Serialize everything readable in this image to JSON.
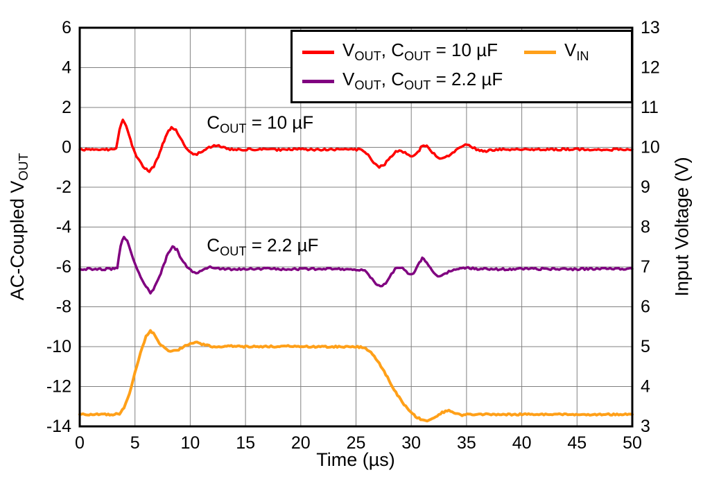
{
  "figure": {
    "background": "#ffffff",
    "frame_color": "#000000",
    "grid_color": "#808080"
  },
  "chart_data": {
    "type": "line",
    "title": "",
    "grid": true,
    "x_axis": {
      "label": "Time (µs)",
      "min": 0,
      "max": 50,
      "tick_step": 5
    },
    "y_left": {
      "label_segments": [
        {
          "t": "AC-Coupled V"
        },
        {
          "s": "OUT"
        }
      ],
      "min": -14,
      "max": 6,
      "tick_step": 2
    },
    "y_right": {
      "label": "Input Voltage (V)",
      "min": 3,
      "max": 13,
      "tick_step": 1
    },
    "legend": {
      "position": "top",
      "items": [
        {
          "id": "vout-10uf",
          "color": "#FF0000",
          "row": 0,
          "col": 0,
          "segments": [
            {
              "t": "V"
            },
            {
              "s": "OUT"
            },
            {
              "t": ", C"
            },
            {
              "s": "OUT"
            },
            {
              "t": " = 10 µF"
            }
          ]
        },
        {
          "id": "vin",
          "color": "#FFA019",
          "row": 0,
          "col": 1,
          "segments": [
            {
              "t": "V"
            },
            {
              "s": "IN"
            }
          ]
        },
        {
          "id": "vout-2p2uf",
          "color": "#800080",
          "row": 1,
          "col": 0,
          "segments": [
            {
              "t": "V"
            },
            {
              "s": "OUT"
            },
            {
              "t": ", C"
            },
            {
              "s": "OUT"
            },
            {
              "t": " = 2.2 µF"
            }
          ]
        }
      ]
    },
    "annotations": [
      {
        "id": "label-cout-10uf",
        "x": 11.5,
        "y": 1.15,
        "axis": "left",
        "segments": [
          {
            "t": "C"
          },
          {
            "s": "OUT"
          },
          {
            "t": " = 10 µF"
          }
        ]
      },
      {
        "id": "label-cout-2p2uf",
        "x": 11.5,
        "y": -5.0,
        "axis": "left",
        "segments": [
          {
            "t": "C"
          },
          {
            "s": "OUT"
          },
          {
            "t": " = 2.2 µF"
          }
        ]
      }
    ],
    "series": [
      {
        "name": "VOUT, COUT = 10 uF",
        "id": "vout-10uf",
        "axis": "left",
        "color": "#FF0000",
        "width": 3.5,
        "noise": 0.05,
        "points": [
          [
            0,
            -0.1
          ],
          [
            1,
            -0.12
          ],
          [
            2,
            -0.1
          ],
          [
            3,
            -0.12
          ],
          [
            3.3,
            -0.05
          ],
          [
            3.6,
            0.9
          ],
          [
            3.9,
            1.4
          ],
          [
            4.2,
            1.1
          ],
          [
            4.6,
            0.35
          ],
          [
            5.0,
            -0.3
          ],
          [
            5.4,
            -0.7
          ],
          [
            5.9,
            -1.05
          ],
          [
            6.3,
            -1.2
          ],
          [
            6.7,
            -0.95
          ],
          [
            7.1,
            -0.45
          ],
          [
            7.5,
            0.15
          ],
          [
            7.9,
            0.7
          ],
          [
            8.3,
            1.0
          ],
          [
            8.7,
            0.85
          ],
          [
            9.1,
            0.45
          ],
          [
            9.6,
            0.0
          ],
          [
            10.1,
            -0.3
          ],
          [
            10.6,
            -0.35
          ],
          [
            11.1,
            -0.2
          ],
          [
            11.7,
            0.0
          ],
          [
            12.3,
            0.1
          ],
          [
            13,
            0.0
          ],
          [
            13.6,
            -0.1
          ],
          [
            14.5,
            -0.12
          ],
          [
            16,
            -0.1
          ],
          [
            18,
            -0.12
          ],
          [
            20,
            -0.1
          ],
          [
            22,
            -0.12
          ],
          [
            24,
            -0.1
          ],
          [
            25.5,
            -0.12
          ],
          [
            26.1,
            -0.35
          ],
          [
            26.6,
            -0.8
          ],
          [
            27.1,
            -1.0
          ],
          [
            27.6,
            -0.85
          ],
          [
            28.1,
            -0.5
          ],
          [
            28.6,
            -0.2
          ],
          [
            29.1,
            -0.15
          ],
          [
            29.6,
            -0.35
          ],
          [
            30.1,
            -0.5
          ],
          [
            30.6,
            -0.25
          ],
          [
            31.0,
            0.1
          ],
          [
            31.4,
            0.05
          ],
          [
            31.9,
            -0.25
          ],
          [
            32.4,
            -0.5
          ],
          [
            32.9,
            -0.55
          ],
          [
            33.4,
            -0.4
          ],
          [
            33.9,
            -0.2
          ],
          [
            34.4,
            -0.05
          ],
          [
            34.9,
            0.1
          ],
          [
            35.4,
            0.05
          ],
          [
            35.9,
            -0.1
          ],
          [
            36.5,
            -0.2
          ],
          [
            37.2,
            -0.15
          ],
          [
            38,
            -0.1
          ],
          [
            40,
            -0.1
          ],
          [
            42,
            -0.12
          ],
          [
            44,
            -0.1
          ],
          [
            46,
            -0.1
          ],
          [
            48,
            -0.12
          ],
          [
            50,
            -0.1
          ]
        ]
      },
      {
        "name": "VOUT, COUT = 2.2 uF",
        "id": "vout-2p2uf",
        "axis": "left",
        "color": "#800080",
        "width": 3.5,
        "noise": 0.05,
        "points": [
          [
            0,
            -6.1
          ],
          [
            1,
            -6.1
          ],
          [
            2,
            -6.12
          ],
          [
            3,
            -6.1
          ],
          [
            3.4,
            -6.05
          ],
          [
            3.7,
            -4.9
          ],
          [
            4.0,
            -4.45
          ],
          [
            4.3,
            -4.7
          ],
          [
            4.7,
            -5.4
          ],
          [
            5.1,
            -6.0
          ],
          [
            5.5,
            -6.5
          ],
          [
            6.0,
            -7.0
          ],
          [
            6.4,
            -7.3
          ],
          [
            6.8,
            -7.0
          ],
          [
            7.2,
            -6.5
          ],
          [
            7.6,
            -5.9
          ],
          [
            8.0,
            -5.3
          ],
          [
            8.4,
            -4.95
          ],
          [
            8.8,
            -5.15
          ],
          [
            9.2,
            -5.6
          ],
          [
            9.7,
            -6.0
          ],
          [
            10.2,
            -6.25
          ],
          [
            10.7,
            -6.3
          ],
          [
            11.2,
            -6.15
          ],
          [
            11.8,
            -6.0
          ],
          [
            12.4,
            -6.05
          ],
          [
            13,
            -6.1
          ],
          [
            14,
            -6.12
          ],
          [
            15,
            -6.1
          ],
          [
            17,
            -6.1
          ],
          [
            19,
            -6.12
          ],
          [
            21,
            -6.1
          ],
          [
            23,
            -6.1
          ],
          [
            25,
            -6.12
          ],
          [
            25.8,
            -6.15
          ],
          [
            26.3,
            -6.5
          ],
          [
            26.8,
            -6.85
          ],
          [
            27.2,
            -7.0
          ],
          [
            27.7,
            -6.8
          ],
          [
            28.2,
            -6.35
          ],
          [
            28.7,
            -6.0
          ],
          [
            29.2,
            -6.05
          ],
          [
            29.7,
            -6.3
          ],
          [
            30.2,
            -6.35
          ],
          [
            30.6,
            -5.9
          ],
          [
            31.0,
            -5.55
          ],
          [
            31.4,
            -5.8
          ],
          [
            31.9,
            -6.2
          ],
          [
            32.4,
            -6.45
          ],
          [
            32.9,
            -6.4
          ],
          [
            33.4,
            -6.25
          ],
          [
            34,
            -6.1
          ],
          [
            35,
            -6.05
          ],
          [
            36,
            -6.1
          ],
          [
            38,
            -6.12
          ],
          [
            40,
            -6.1
          ],
          [
            42,
            -6.1
          ],
          [
            44,
            -6.12
          ],
          [
            46,
            -6.1
          ],
          [
            48,
            -6.1
          ],
          [
            50,
            -6.1
          ]
        ]
      },
      {
        "name": "VIN",
        "id": "vin",
        "axis": "right",
        "color": "#FFA019",
        "width": 4,
        "noise": 0.02,
        "points": [
          [
            0,
            3.3
          ],
          [
            1,
            3.3
          ],
          [
            2,
            3.3
          ],
          [
            3,
            3.3
          ],
          [
            3.6,
            3.32
          ],
          [
            4.0,
            3.45
          ],
          [
            4.5,
            3.8
          ],
          [
            5.0,
            4.35
          ],
          [
            5.5,
            4.85
          ],
          [
            6.0,
            5.25
          ],
          [
            6.4,
            5.4
          ],
          [
            6.8,
            5.3
          ],
          [
            7.2,
            5.1
          ],
          [
            7.7,
            4.95
          ],
          [
            8.2,
            4.88
          ],
          [
            8.8,
            4.9
          ],
          [
            9.4,
            5.0
          ],
          [
            10.0,
            5.08
          ],
          [
            10.6,
            5.1
          ],
          [
            11.2,
            5.05
          ],
          [
            12,
            5.0
          ],
          [
            13,
            5.0
          ],
          [
            14,
            5.02
          ],
          [
            15,
            5.0
          ],
          [
            17,
            5.0
          ],
          [
            19,
            5.02
          ],
          [
            21,
            5.0
          ],
          [
            23,
            5.0
          ],
          [
            25,
            5.0
          ],
          [
            25.7,
            4.98
          ],
          [
            26.2,
            4.9
          ],
          [
            26.8,
            4.7
          ],
          [
            27.4,
            4.45
          ],
          [
            28.0,
            4.15
          ],
          [
            28.6,
            3.85
          ],
          [
            29.2,
            3.6
          ],
          [
            29.8,
            3.4
          ],
          [
            30.4,
            3.25
          ],
          [
            31.0,
            3.15
          ],
          [
            31.6,
            3.15
          ],
          [
            32.2,
            3.25
          ],
          [
            32.8,
            3.35
          ],
          [
            33.4,
            3.4
          ],
          [
            34.0,
            3.33
          ],
          [
            34.6,
            3.28
          ],
          [
            35.2,
            3.3
          ],
          [
            36,
            3.3
          ],
          [
            38,
            3.3
          ],
          [
            40,
            3.3
          ],
          [
            42,
            3.3
          ],
          [
            44,
            3.3
          ],
          [
            46,
            3.3
          ],
          [
            48,
            3.3
          ],
          [
            50,
            3.3
          ]
        ]
      }
    ]
  }
}
